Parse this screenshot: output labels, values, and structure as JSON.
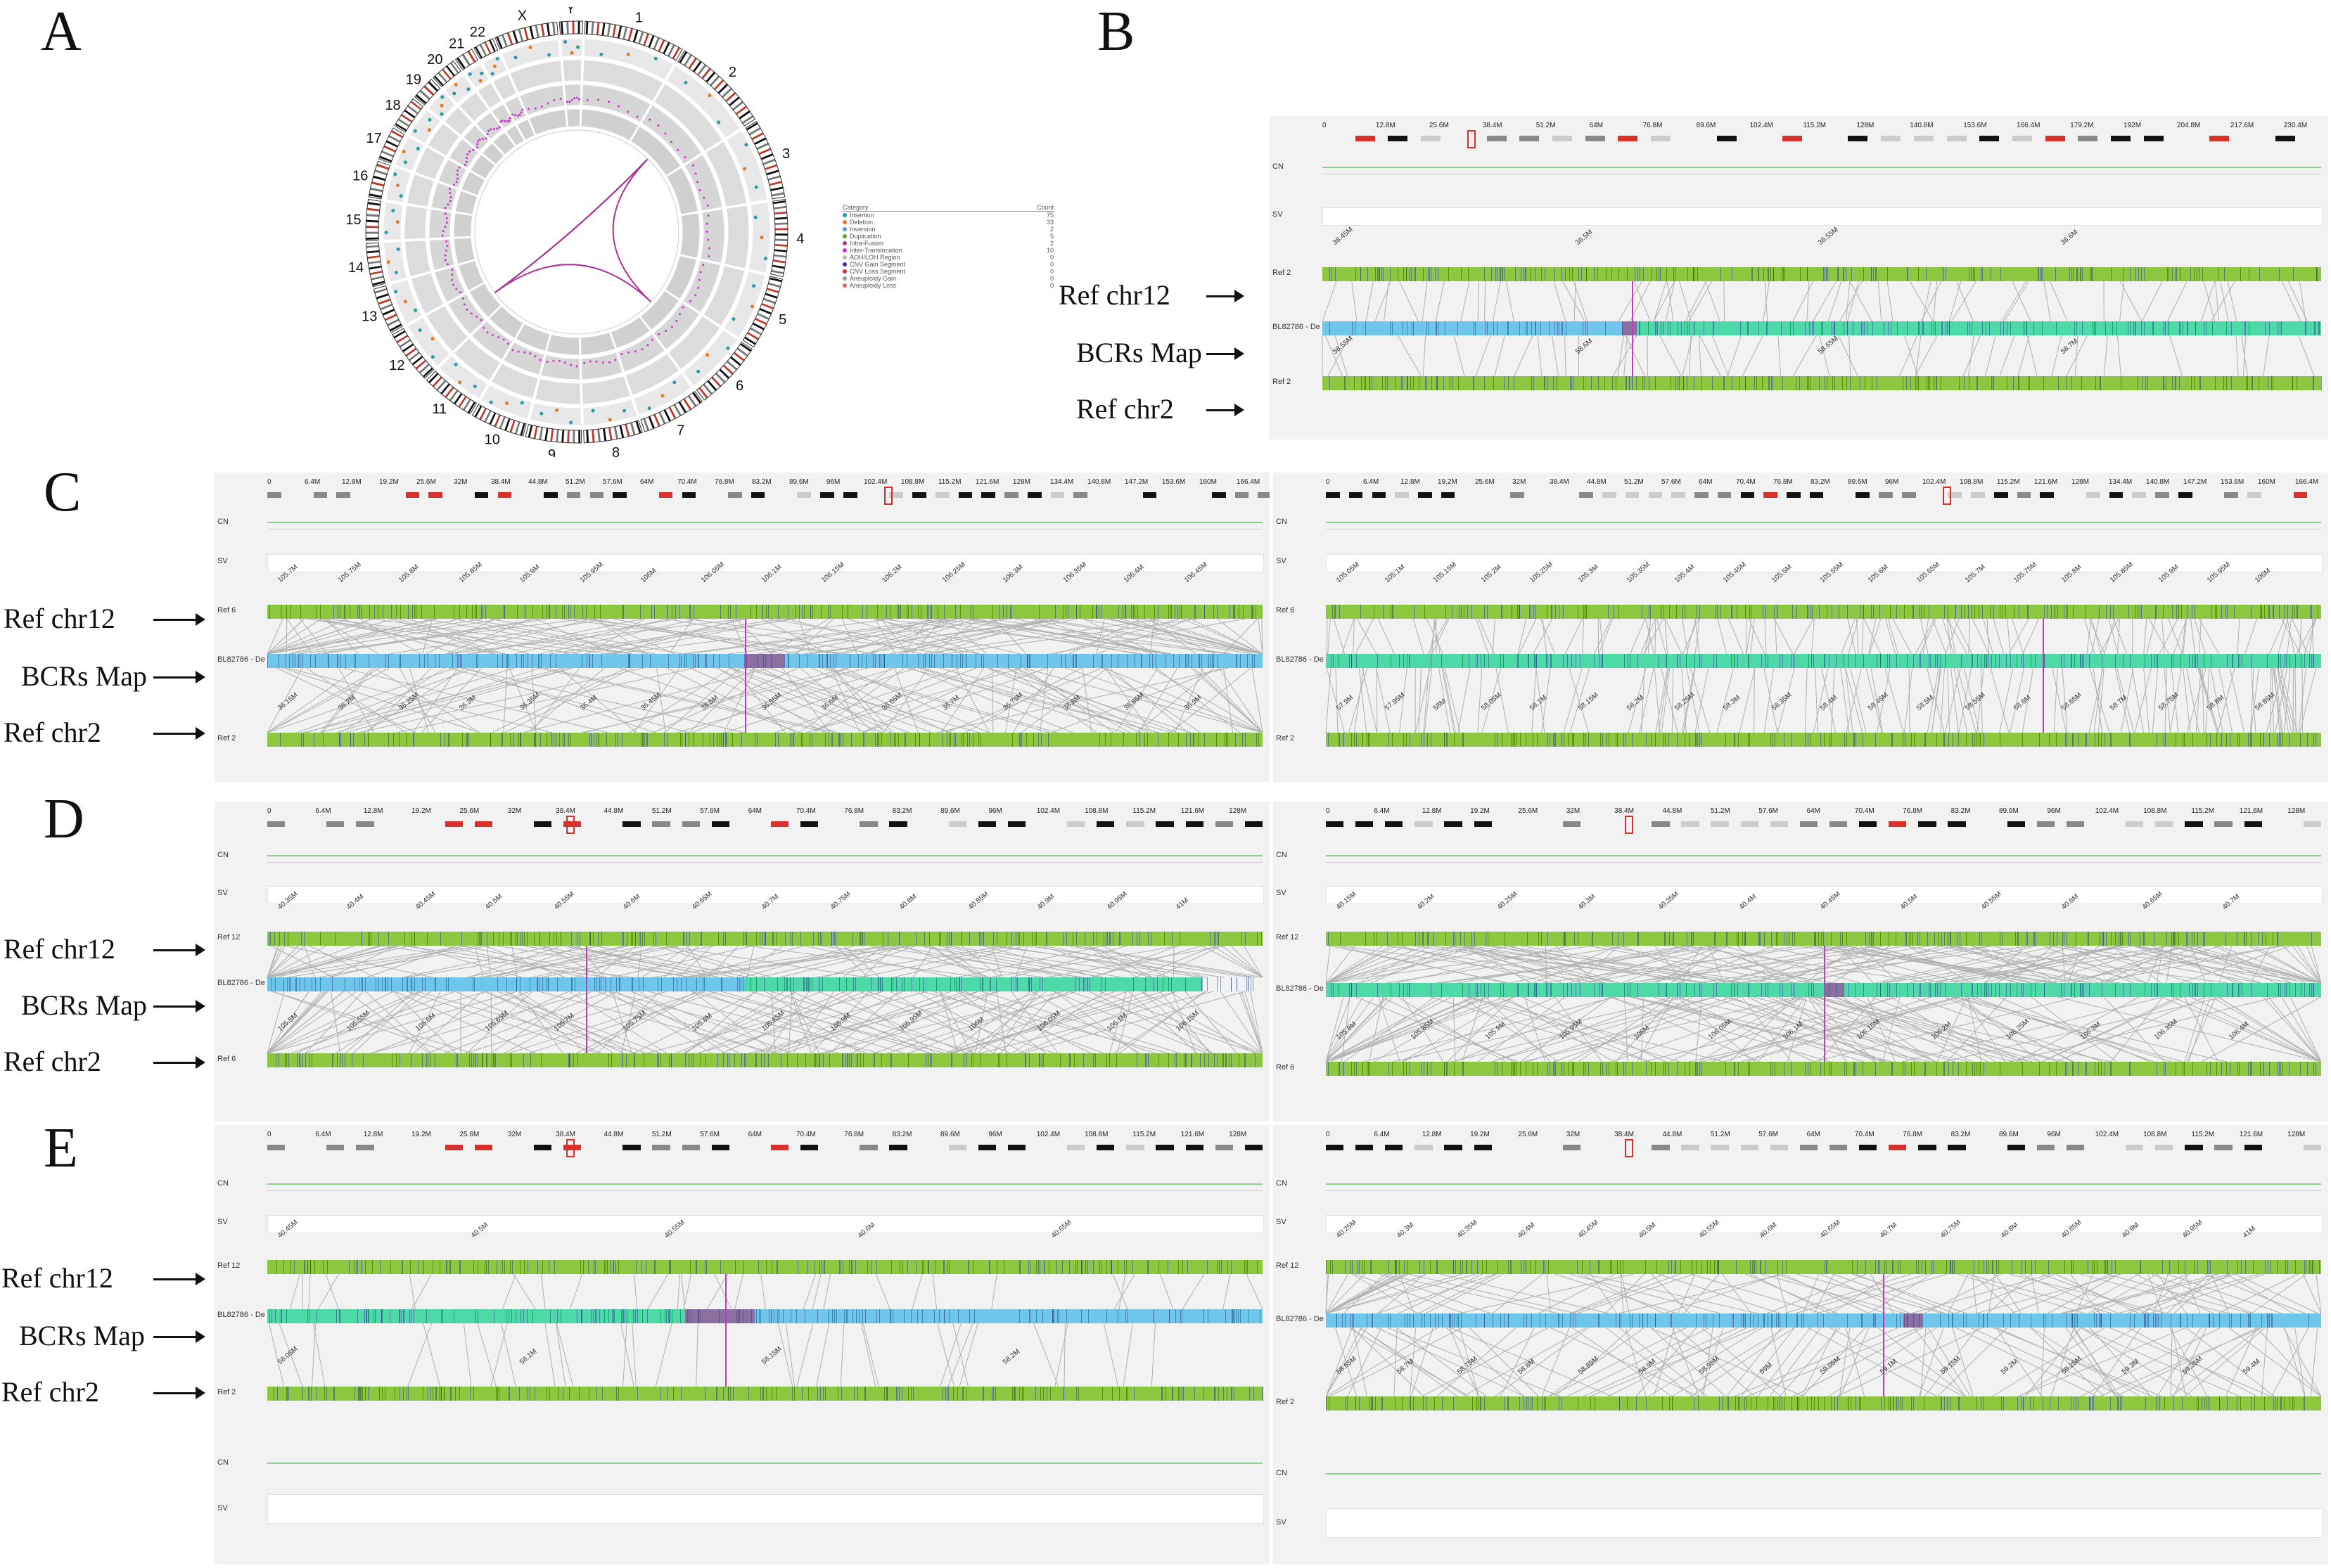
{
  "panels": {
    "A": "A",
    "B": "B",
    "C": "C",
    "D": "D",
    "E": "E"
  },
  "labels": {
    "ref_chr12": "Ref chr12",
    "bcrs_map": "BCRs Map",
    "ref_chr2": "Ref chr2"
  },
  "track_names": {
    "cn": "CN",
    "sv": "SV",
    "ref2": "Ref 2",
    "ref6": "Ref 6",
    "ref12": "Ref 12",
    "map": "BL82786 - De"
  },
  "circos": {
    "chromosomes": [
      "1",
      "2",
      "3",
      "4",
      "5",
      "6",
      "7",
      "8",
      "9",
      "10",
      "11",
      "12",
      "13",
      "14",
      "15",
      "16",
      "17",
      "18",
      "19",
      "20",
      "21",
      "22",
      "X",
      "Y"
    ],
    "legend": {
      "header_category": "Category",
      "header_count": "Count",
      "rows": [
        {
          "name": "Insertion",
          "count": "75",
          "color": "#2b9aa8"
        },
        {
          "name": "Deletion",
          "count": "33",
          "color": "#e07b2a"
        },
        {
          "name": "Inversion",
          "count": "2",
          "color": "#5a9bd5"
        },
        {
          "name": "Duplication",
          "count": "5",
          "color": "#6a9a3a"
        },
        {
          "name": "Intra-Fusion",
          "count": "2",
          "color": "#9a3a9a"
        },
        {
          "name": "Inter-Translocation",
          "count": "10",
          "color": "#cc33cc"
        },
        {
          "name": "AOH/LOH Region",
          "count": "0",
          "color": "#bbbbbb"
        },
        {
          "name": "CNV Gain Segment",
          "count": "0",
          "color": "#333399"
        },
        {
          "name": "CNV Loss Segment",
          "count": "0",
          "color": "#cc3333"
        },
        {
          "name": "Aneuploidy Gain",
          "count": "0",
          "color": "#999999"
        },
        {
          "name": "Aneuploidy Loss",
          "count": "0",
          "color": "#dd6666"
        }
      ]
    }
  },
  "views": {
    "B": {
      "ideogram_ticks": [
        "0",
        "12.8M",
        "25.6M",
        "38.4M",
        "51.2M",
        "64M",
        "76.8M",
        "89.6M",
        "102.4M",
        "115.2M",
        "128M",
        "140.8M",
        "153.6M",
        "166.4M",
        "179.2M",
        "192M",
        "204.8M",
        "217.6M",
        "230.4M"
      ],
      "top_ref": "Ref 2",
      "bottom_ref": "Ref 2",
      "top_ticks": [
        "36.45M",
        "36.5M",
        "36.55M",
        "36.6M"
      ],
      "bottom_ticks": [
        "58.55M",
        "58.6M",
        "58.65M",
        "58.7M"
      ]
    },
    "C_left": {
      "ideogram_ticks": [
        "0",
        "6.4M",
        "12.8M",
        "19.2M",
        "25.6M",
        "32M",
        "38.4M",
        "44.8M",
        "51.2M",
        "57.6M",
        "64M",
        "70.4M",
        "76.8M",
        "83.2M",
        "89.6M",
        "96M",
        "102.4M",
        "108.8M",
        "115.2M",
        "121.6M",
        "128M",
        "134.4M",
        "140.8M",
        "147.2M",
        "153.6M",
        "160M",
        "166.4M"
      ],
      "top_ref": "Ref 6",
      "bottom_ref": "Ref 2",
      "top_ticks": [
        "105.7M",
        "105.75M",
        "105.8M",
        "105.85M",
        "105.9M",
        "105.95M",
        "106M",
        "106.05M",
        "106.1M",
        "106.15M",
        "106.2M",
        "106.25M",
        "106.3M",
        "106.35M",
        "106.4M",
        "106.45M"
      ],
      "bottom_ticks": [
        "36.15M",
        "36.2M",
        "36.25M",
        "36.3M",
        "36.35M",
        "36.4M",
        "36.45M",
        "36.5M",
        "36.55M",
        "36.6M",
        "36.65M",
        "36.7M",
        "36.75M",
        "36.8M",
        "36.85M",
        "36.9M"
      ]
    },
    "C_right": {
      "ideogram_ticks": [
        "0",
        "6.4M",
        "12.8M",
        "19.2M",
        "25.6M",
        "32M",
        "38.4M",
        "44.8M",
        "51.2M",
        "57.6M",
        "64M",
        "70.4M",
        "76.8M",
        "83.2M",
        "89.6M",
        "96M",
        "102.4M",
        "108.8M",
        "115.2M",
        "121.6M",
        "128M",
        "134.4M",
        "140.8M",
        "147.2M",
        "153.6M",
        "160M",
        "166.4M"
      ],
      "top_ref": "Ref 6",
      "bottom_ref": "Ref 2",
      "top_ticks": [
        "105.05M",
        "105.1M",
        "105.15M",
        "105.2M",
        "105.25M",
        "105.3M",
        "105.35M",
        "105.4M",
        "105.45M",
        "105.5M",
        "105.55M",
        "105.6M",
        "105.65M",
        "105.7M",
        "105.75M",
        "105.8M",
        "105.85M",
        "105.9M",
        "105.95M",
        "106M"
      ],
      "bottom_ticks": [
        "57.9M",
        "57.95M",
        "58M",
        "58.05M",
        "58.1M",
        "58.15M",
        "58.2M",
        "58.25M",
        "58.3M",
        "58.35M",
        "58.4M",
        "58.45M",
        "58.5M",
        "58.55M",
        "58.6M",
        "58.65M",
        "58.7M",
        "58.75M",
        "58.8M",
        "58.85M"
      ]
    },
    "D_left": {
      "ideogram_ticks": [
        "0",
        "6.4M",
        "12.8M",
        "19.2M",
        "25.6M",
        "32M",
        "38.4M",
        "44.8M",
        "51.2M",
        "57.6M",
        "64M",
        "70.4M",
        "76.8M",
        "83.2M",
        "89.6M",
        "96M",
        "102.4M",
        "108.8M",
        "115.2M",
        "121.6M",
        "128M"
      ],
      "top_ref": "Ref 12",
      "bottom_ref": "Ref 6",
      "top_ticks": [
        "40.35M",
        "40.4M",
        "40.45M",
        "40.5M",
        "40.55M",
        "40.6M",
        "40.65M",
        "40.7M",
        "40.75M",
        "40.8M",
        "40.85M",
        "40.9M",
        "40.95M",
        "41M"
      ],
      "bottom_ticks": [
        "105.5M",
        "105.55M",
        "105.6M",
        "105.65M",
        "105.7M",
        "105.75M",
        "105.8M",
        "105.85M",
        "105.9M",
        "105.95M",
        "106M",
        "106.05M",
        "106.1M",
        "106.15M"
      ]
    },
    "D_right": {
      "ideogram_ticks": [
        "0",
        "6.4M",
        "12.8M",
        "19.2M",
        "25.6M",
        "32M",
        "38.4M",
        "44.8M",
        "51.2M",
        "57.6M",
        "64M",
        "70.4M",
        "76.8M",
        "83.2M",
        "89.6M",
        "96M",
        "102.4M",
        "108.8M",
        "115.2M",
        "121.6M",
        "128M"
      ],
      "top_ref": "Ref 12",
      "bottom_ref": "Ref 6",
      "top_ticks": [
        "40.15M",
        "40.2M",
        "40.25M",
        "40.3M",
        "40.35M",
        "40.4M",
        "40.45M",
        "40.5M",
        "40.55M",
        "40.6M",
        "40.65M",
        "40.7M"
      ],
      "bottom_ticks": [
        "105.8M",
        "105.85M",
        "105.9M",
        "105.95M",
        "106M",
        "106.05M",
        "106.1M",
        "106.15M",
        "106.2M",
        "106.25M",
        "106.3M",
        "106.35M",
        "106.4M"
      ]
    },
    "E_left": {
      "ideogram_ticks": [
        "0",
        "6.4M",
        "12.8M",
        "19.2M",
        "25.6M",
        "32M",
        "38.4M",
        "44.8M",
        "51.2M",
        "57.6M",
        "64M",
        "70.4M",
        "76.8M",
        "83.2M",
        "89.6M",
        "96M",
        "102.4M",
        "108.8M",
        "115.2M",
        "121.6M",
        "128M"
      ],
      "top_ref": "Ref 12",
      "bottom_ref": "Ref 2",
      "top_ticks": [
        "40.45M",
        "40.5M",
        "40.55M",
        "40.6M",
        "40.65M"
      ],
      "bottom_ticks": [
        "58.05M",
        "58.1M",
        "58.15M",
        "58.2M"
      ]
    },
    "E_right": {
      "ideogram_ticks": [
        "0",
        "6.4M",
        "12.8M",
        "19.2M",
        "25.6M",
        "32M",
        "38.4M",
        "44.8M",
        "51.2M",
        "57.6M",
        "64M",
        "70.4M",
        "76.8M",
        "83.2M",
        "89.6M",
        "96M",
        "102.4M",
        "108.8M",
        "115.2M",
        "121.6M",
        "128M"
      ],
      "top_ref": "Ref 12",
      "bottom_ref": "Ref 2",
      "top_ticks": [
        "40.25M",
        "40.3M",
        "40.35M",
        "40.4M",
        "40.45M",
        "40.5M",
        "40.55M",
        "40.6M",
        "40.65M",
        "40.7M",
        "40.75M",
        "40.8M",
        "40.85M",
        "40.9M",
        "40.95M",
        "41M"
      ],
      "bottom_ticks": [
        "58.65M",
        "58.7M",
        "58.75M",
        "58.8M",
        "58.85M",
        "58.9M",
        "58.95M",
        "59M",
        "59.05M",
        "59.1M",
        "59.15M",
        "59.2M",
        "59.25M",
        "59.3M",
        "59.35M",
        "59.4M"
      ]
    }
  },
  "colors": {
    "ref_green": "#8dc63f",
    "map_blue": "#6ec6ea",
    "map_teal": "#4dd9a8",
    "junction": "#8a6fa0",
    "link": "#b0b0b0",
    "marker_pink": "#c03cc0"
  }
}
